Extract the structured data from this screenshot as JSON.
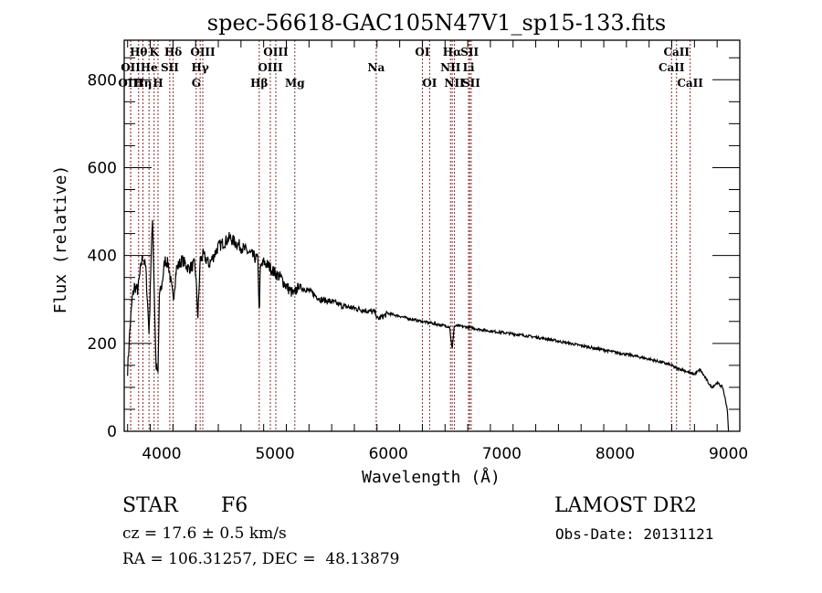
{
  "chart_data": {
    "type": "line",
    "title": "spec-56618-GAC105N47V1_sp15-133.fits",
    "xlabel": "Wavelength (Å)",
    "ylabel": "Flux (relative)",
    "xlim": [
      3670,
      9100
    ],
    "ylim": [
      0,
      890
    ],
    "xticks": [
      4000,
      5000,
      6000,
      7000,
      8000,
      9000
    ],
    "yticks": [
      0,
      200,
      400,
      600,
      800
    ],
    "grid": false,
    "line_color": "#000000",
    "marker_color": "#8b2a2a",
    "series": [
      {
        "name": "flux",
        "x": [
          3700,
          3720,
          3740,
          3760,
          3790,
          3820,
          3835,
          3860,
          3890,
          3900,
          3920,
          3935,
          3950,
          3968,
          3980,
          4000,
          4030,
          4060,
          4102,
          4130,
          4180,
          4240,
          4290,
          4300,
          4320,
          4340,
          4370,
          4420,
          4500,
          4550,
          4600,
          4650,
          4700,
          4750,
          4800,
          4850,
          4861,
          4870,
          4900,
          4950,
          5000,
          5050,
          5100,
          5170,
          5200,
          5300,
          5400,
          5500,
          5600,
          5700,
          5800,
          5890,
          5900,
          6000,
          6100,
          6200,
          6300,
          6400,
          6500,
          6540,
          6563,
          6580,
          6600,
          6700,
          6800,
          6900,
          7000,
          7200,
          7400,
          7600,
          7800,
          8000,
          8200,
          8400,
          8500,
          8542,
          8600,
          8662,
          8700,
          8750,
          8800,
          8850,
          8900,
          8950,
          8990,
          9000
        ],
        "y": [
          140,
          230,
          300,
          330,
          320,
          380,
          400,
          370,
          220,
          330,
          490,
          320,
          150,
          130,
          310,
          330,
          390,
          380,
          300,
          370,
          390,
          370,
          380,
          360,
          260,
          390,
          400,
          380,
          420,
          430,
          440,
          430,
          420,
          410,
          400,
          390,
          260,
          370,
          385,
          375,
          360,
          350,
          330,
          310,
          330,
          320,
          300,
          295,
          285,
          280,
          275,
          270,
          255,
          268,
          262,
          255,
          250,
          245,
          240,
          238,
          185,
          238,
          240,
          237,
          232,
          228,
          225,
          218,
          210,
          200,
          190,
          180,
          170,
          158,
          150,
          143,
          140,
          132,
          130,
          140,
          120,
          100,
          110,
          100,
          50,
          0
        ]
      }
    ],
    "lines": [
      {
        "label": "Hθ",
        "wave": 3797,
        "row": 0
      },
      {
        "label": "K",
        "wave": 3934,
        "row": 0
      },
      {
        "label": "Hδ",
        "wave": 4102,
        "row": 0
      },
      {
        "label": "OIII",
        "wave": 4363,
        "row": 0
      },
      {
        "label": "OIII",
        "wave": 5007,
        "row": 0
      },
      {
        "label": "OI",
        "wave": 6300,
        "row": 0
      },
      {
        "label": "Hα",
        "wave": 6563,
        "row": 0
      },
      {
        "label": "SII",
        "wave": 6717,
        "row": 0
      },
      {
        "label": "CaII",
        "wave": 8542,
        "row": 0
      },
      {
        "label": "OII",
        "wave": 3727,
        "row": 1
      },
      {
        "label": "He",
        "wave": 3889,
        "row": 1
      },
      {
        "label": "SII",
        "wave": 4072,
        "row": 1
      },
      {
        "label": "Hγ",
        "wave": 4340,
        "row": 1
      },
      {
        "label": "OIII",
        "wave": 4959,
        "row": 1
      },
      {
        "label": "Na",
        "wave": 5893,
        "row": 1
      },
      {
        "label": "NII",
        "wave": 6548,
        "row": 1
      },
      {
        "label": "Li",
        "wave": 6708,
        "row": 1
      },
      {
        "label": "CaII",
        "wave": 8498,
        "row": 1
      },
      {
        "label": "OIII",
        "wave": 3727,
        "row": 2
      },
      {
        "label": "Hη",
        "wave": 3835,
        "row": 2
      },
      {
        "label": "H",
        "wave": 3968,
        "row": 2
      },
      {
        "label": "G",
        "wave": 4305,
        "row": 2
      },
      {
        "label": "Hβ",
        "wave": 4861,
        "row": 2
      },
      {
        "label": "Mg",
        "wave": 5175,
        "row": 2
      },
      {
        "label": "OI",
        "wave": 6364,
        "row": 2
      },
      {
        "label": "NII",
        "wave": 6583,
        "row": 2
      },
      {
        "label": "SII",
        "wave": 6731,
        "row": 2
      },
      {
        "label": "CaII",
        "wave": 8662,
        "row": 2
      }
    ]
  },
  "info": {
    "object_class": "STAR",
    "subclass": "F6",
    "redshift": "cz = 17.6 ± 0.5 km/s",
    "coords": "RA = 106.31257, DEC =  48.13879",
    "survey": "LAMOST DR2",
    "obs_date": "Obs-Date: 20131121"
  }
}
